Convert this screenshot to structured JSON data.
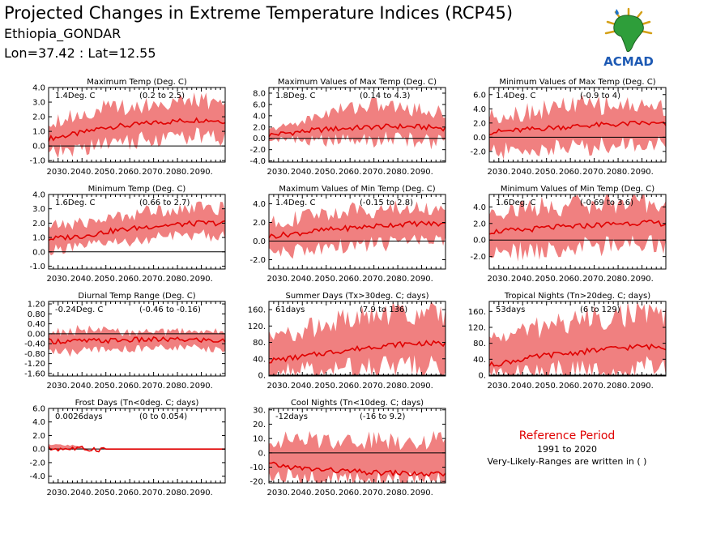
{
  "header": {
    "title": "Projected Changes in Extreme Temperature Indices (RCP45)",
    "location": "Ethiopia_GONDAR",
    "coords": "Lon=37.42 : Lat=12.55"
  },
  "logo": {
    "text": "ACMAD",
    "icon": "africa-map-icon"
  },
  "reference": {
    "title": "Reference Period",
    "years": "1991 to 2020",
    "note": "Very-Likely-Ranges are written in ( )"
  },
  "colors": {
    "line": "#e00000",
    "band": "#f08080",
    "zero": "#000000"
  },
  "x_ticks": [
    "2030.",
    "2040.",
    "2050.",
    "2060.",
    "2070.",
    "2080.",
    "2090."
  ],
  "chart_data": [
    {
      "type": "area",
      "title": "Maximum Temp (Deg. C)",
      "value_label": "1.4Deg. C",
      "range_label": "(0.2 to 2.5)",
      "x_range": [
        2026,
        2100
      ],
      "ylim": [
        -1.1,
        4.0
      ],
      "y_ticks": [
        -1.0,
        0.0,
        1.0,
        2.0,
        3.0,
        4.0
      ],
      "y_tick_labels": [
        "-1.0",
        "0.0",
        "1.0",
        "2.0",
        "3.0",
        "4.0"
      ],
      "anchors": [
        [
          2026,
          0.5,
          -0.6,
          1.7
        ],
        [
          2040,
          0.9,
          -0.2,
          2.2
        ],
        [
          2050,
          1.3,
          0.2,
          2.6
        ],
        [
          2060,
          1.4,
          0.3,
          2.7
        ],
        [
          2070,
          1.6,
          0.5,
          2.9
        ],
        [
          2080,
          1.7,
          0.6,
          3.0
        ],
        [
          2090,
          1.8,
          0.7,
          3.1
        ],
        [
          2100,
          1.7,
          0.5,
          3.0
        ]
      ]
    },
    {
      "type": "area",
      "title": "Maximum Values of Max Temp (Deg. C)",
      "value_label": "1.8Deg. C",
      "range_label": "(0.14 to 4.3)",
      "x_range": [
        2026,
        2100
      ],
      "ylim": [
        -4.2,
        9.0
      ],
      "y_ticks": [
        -4,
        -2,
        0,
        2,
        4,
        6,
        8
      ],
      "y_tick_labels": [
        "-4.0",
        "-2.0",
        "0.0",
        "2.0",
        "4.0",
        "6.0",
        "8.0"
      ],
      "anchors": [
        [
          2026,
          0.6,
          -0.2,
          1.5
        ],
        [
          2040,
          1.2,
          -0.3,
          3.0
        ],
        [
          2050,
          1.6,
          -0.5,
          4.5
        ],
        [
          2060,
          1.8,
          -0.4,
          5.5
        ],
        [
          2070,
          2.0,
          -0.2,
          6.0
        ],
        [
          2080,
          2.1,
          0.0,
          5.5
        ],
        [
          2090,
          2.0,
          -0.5,
          5.0
        ],
        [
          2100,
          1.8,
          -0.8,
          4.5
        ]
      ]
    },
    {
      "type": "area",
      "title": "Minimum Values of Max Temp (Deg. C)",
      "value_label": "1.4Deg. C",
      "range_label": "(-0.9 to 4)",
      "x_range": [
        2026,
        2100
      ],
      "ylim": [
        -3.5,
        7.0
      ],
      "y_ticks": [
        -2,
        0,
        2,
        4,
        6
      ],
      "y_tick_labels": [
        "-2.0",
        "0.0",
        "2.0",
        "4.0",
        "6.0"
      ],
      "anchors": [
        [
          2026,
          0.7,
          -2.0,
          3.0
        ],
        [
          2040,
          1.0,
          -2.0,
          3.5
        ],
        [
          2050,
          1.3,
          -1.5,
          4.0
        ],
        [
          2060,
          1.5,
          -1.5,
          4.5
        ],
        [
          2070,
          1.7,
          -1.2,
          4.5
        ],
        [
          2080,
          1.8,
          -1.0,
          4.5
        ],
        [
          2090,
          2.0,
          -0.8,
          4.5
        ],
        [
          2100,
          1.8,
          -1.0,
          4.2
        ]
      ]
    },
    {
      "type": "area",
      "title": "Minimum Temp (Deg. C)",
      "value_label": "1.6Deg. C",
      "range_label": "(0.66 to 2.7)",
      "x_range": [
        2026,
        2100
      ],
      "ylim": [
        -1.2,
        4.0
      ],
      "y_ticks": [
        -1.0,
        0.0,
        1.0,
        2.0,
        3.0,
        4.0
      ],
      "y_tick_labels": [
        "-1.0",
        "0.0",
        "1.0",
        "2.0",
        "3.0",
        "4.0"
      ],
      "anchors": [
        [
          2026,
          0.9,
          0.1,
          1.8
        ],
        [
          2040,
          1.1,
          0.3,
          2.0
        ],
        [
          2050,
          1.4,
          0.6,
          2.3
        ],
        [
          2060,
          1.6,
          0.7,
          2.6
        ],
        [
          2070,
          1.8,
          0.9,
          2.9
        ],
        [
          2080,
          1.9,
          1.1,
          3.0
        ],
        [
          2090,
          2.0,
          1.2,
          3.1
        ],
        [
          2100,
          2.0,
          1.1,
          3.0
        ]
      ]
    },
    {
      "type": "area",
      "title": "Maximum Values of Min Temp (Deg. C)",
      "value_label": "1.4Deg. C",
      "range_label": "(-0.15 to 2.8)",
      "x_range": [
        2026,
        2100
      ],
      "ylim": [
        -3.0,
        5.0
      ],
      "y_ticks": [
        -2,
        0,
        2,
        4
      ],
      "y_tick_labels": [
        "-2.0",
        "0.0",
        "2.0",
        "4.0"
      ],
      "anchors": [
        [
          2026,
          0.5,
          -1.0,
          2.0
        ],
        [
          2040,
          0.9,
          -1.2,
          2.5
        ],
        [
          2050,
          1.2,
          -0.8,
          3.0
        ],
        [
          2060,
          1.4,
          -0.6,
          3.2
        ],
        [
          2070,
          1.6,
          -0.4,
          3.4
        ],
        [
          2080,
          1.8,
          -0.2,
          3.5
        ],
        [
          2090,
          1.9,
          0.0,
          3.6
        ],
        [
          2100,
          1.8,
          0.0,
          3.4
        ]
      ]
    },
    {
      "type": "area",
      "title": "Minimum Values of Min Temp (Deg. C)",
      "value_label": "1.6Deg. C",
      "range_label": "(-0.69 to 3.6)",
      "x_range": [
        2026,
        2100
      ],
      "ylim": [
        -3.5,
        5.5
      ],
      "y_ticks": [
        -2,
        0,
        2,
        4
      ],
      "y_tick_labels": [
        "-2.0",
        "0.0",
        "2.0",
        "4.0"
      ],
      "anchors": [
        [
          2026,
          1.0,
          -1.5,
          3.5
        ],
        [
          2040,
          1.2,
          -1.5,
          3.8
        ],
        [
          2050,
          1.5,
          -1.2,
          4.0
        ],
        [
          2060,
          1.6,
          -1.0,
          4.2
        ],
        [
          2070,
          1.8,
          -0.8,
          4.3
        ],
        [
          2080,
          2.0,
          -0.6,
          4.4
        ],
        [
          2090,
          2.1,
          -0.5,
          4.5
        ],
        [
          2100,
          2.0,
          -0.6,
          4.3
        ]
      ]
    },
    {
      "type": "area",
      "title": "Diurnal Temp Range (Deg. C)",
      "value_label": "-0.24Deg. C",
      "range_label": "(-0.46 to -0.16)",
      "x_range": [
        2026,
        2100
      ],
      "ylim": [
        -1.7,
        1.3
      ],
      "y_ticks": [
        -1.6,
        -1.2,
        -0.8,
        -0.4,
        0.0,
        0.4,
        0.8,
        1.2
      ],
      "y_tick_labels": [
        "-1.60",
        "-1.20",
        "-0.80",
        "-0.40",
        "0.00",
        "0.40",
        "0.80",
        "1.20"
      ],
      "anchors": [
        [
          2026,
          -0.3,
          -0.7,
          0.05
        ],
        [
          2040,
          -0.3,
          -0.75,
          0.15
        ],
        [
          2050,
          -0.28,
          -0.65,
          0.1
        ],
        [
          2060,
          -0.25,
          -0.6,
          0.05
        ],
        [
          2070,
          -0.24,
          -0.55,
          0.05
        ],
        [
          2080,
          -0.24,
          -0.55,
          0.1
        ],
        [
          2090,
          -0.25,
          -0.6,
          0.1
        ],
        [
          2100,
          -0.3,
          -0.65,
          0.05
        ]
      ]
    },
    {
      "type": "area",
      "title": "Summer Days (Tx>30deg. C; days)",
      "value_label": "61days",
      "range_label": "(7.9 to 136)",
      "x_range": [
        2026,
        2100
      ],
      "ylim": [
        -2,
        180
      ],
      "y_ticks": [
        0,
        40,
        80,
        120,
        160
      ],
      "y_tick_labels": [
        "0.",
        "40.",
        "80.",
        "120.",
        "160."
      ],
      "anchors": [
        [
          2026,
          35,
          5,
          90
        ],
        [
          2040,
          45,
          8,
          110
        ],
        [
          2050,
          55,
          10,
          125
        ],
        [
          2060,
          62,
          12,
          135
        ],
        [
          2070,
          70,
          15,
          145
        ],
        [
          2080,
          75,
          15,
          150
        ],
        [
          2090,
          78,
          18,
          155
        ],
        [
          2100,
          76,
          15,
          150
        ]
      ]
    },
    {
      "type": "area",
      "title": "Tropical Nights (Tn>20deg. C; days)",
      "value_label": "53days",
      "range_label": "(6 to 129)",
      "x_range": [
        2026,
        2100
      ],
      "ylim": [
        -2,
        185
      ],
      "y_ticks": [
        0,
        40,
        80,
        120,
        160
      ],
      "y_tick_labels": [
        "0.",
        "40.",
        "80.",
        "120.",
        "160."
      ],
      "anchors": [
        [
          2026,
          25,
          3,
          90
        ],
        [
          2040,
          40,
          5,
          110
        ],
        [
          2050,
          50,
          8,
          125
        ],
        [
          2060,
          55,
          10,
          135
        ],
        [
          2070,
          62,
          12,
          145
        ],
        [
          2080,
          68,
          15,
          150
        ],
        [
          2090,
          72,
          15,
          155
        ],
        [
          2100,
          70,
          15,
          150
        ]
      ]
    },
    {
      "type": "area",
      "title": "Frost Days (Tn<0deg. C; days)",
      "value_label": "0.0026days",
      "range_label": "(0 to 0.054)",
      "x_range": [
        2026,
        2100
      ],
      "ylim": [
        -5.0,
        6.0
      ],
      "y_ticks": [
        -4,
        -2,
        0,
        2,
        4,
        6
      ],
      "y_tick_labels": [
        "-4.0",
        "-2.0",
        "0.0",
        "2.0",
        "4.0",
        "6.0"
      ],
      "anchors": [
        [
          2026,
          0.05,
          0.0,
          0.6
        ],
        [
          2035,
          0.05,
          0.0,
          0.6
        ],
        [
          2042,
          0.0,
          0.0,
          0.1
        ],
        [
          2050,
          0.0,
          0.0,
          0.0
        ],
        [
          2100,
          0.0,
          0.0,
          0.0
        ]
      ]
    },
    {
      "type": "area",
      "title": "Cool Nights (Tn<10deg. C; days)",
      "value_label": "-12days",
      "range_label": "(-16 to 9.2)",
      "x_range": [
        2026,
        2100
      ],
      "ylim": [
        -21,
        31
      ],
      "y_ticks": [
        -20,
        -10,
        0,
        10,
        20,
        30
      ],
      "y_tick_labels": [
        "-20.",
        "-10.",
        "0.",
        "10.",
        "20.",
        "30."
      ],
      "anchors": [
        [
          2026,
          -8,
          -16,
          9
        ],
        [
          2040,
          -11,
          -18,
          9
        ],
        [
          2050,
          -12,
          -18,
          9
        ],
        [
          2060,
          -13,
          -19,
          9
        ],
        [
          2070,
          -14,
          -19,
          9
        ],
        [
          2080,
          -14,
          -19,
          9
        ],
        [
          2090,
          -15,
          -19,
          9
        ],
        [
          2100,
          -15,
          -19,
          9
        ]
      ]
    }
  ]
}
